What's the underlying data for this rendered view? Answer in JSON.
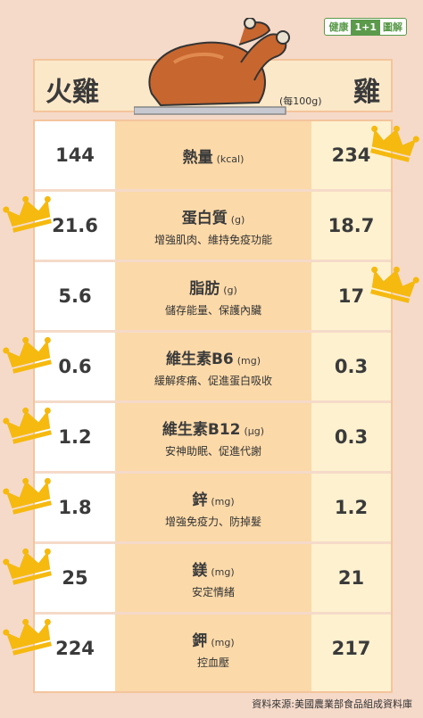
{
  "brand": {
    "left": "健康",
    "plus": "1+1",
    "right": "圖解"
  },
  "header": {
    "left_name": "火雞",
    "right_name": "雞",
    "unit": "(每100g)"
  },
  "rows": [
    {
      "name": "熱量",
      "unit": "(kcal)",
      "desc": "",
      "left": "144",
      "right": "234",
      "winner": "right"
    },
    {
      "name": "蛋白質",
      "unit": "(g)",
      "desc": "增強肌肉、維持免疫功能",
      "left": "21.6",
      "right": "18.7",
      "winner": "left"
    },
    {
      "name": "脂肪",
      "unit": "(g)",
      "desc": "儲存能量、保護內臟",
      "left": "5.6",
      "right": "17",
      "winner": "right"
    },
    {
      "name": "維生素B6",
      "unit": "(mg)",
      "desc": "緩解疼痛、促進蛋白吸收",
      "left": "0.6",
      "right": "0.3",
      "winner": "left"
    },
    {
      "name": "維生素B12",
      "unit": "(μg)",
      "desc": "安神助眠、促進代謝",
      "left": "1.2",
      "right": "0.3",
      "winner": "left"
    },
    {
      "name": "鋅",
      "unit": "(mg)",
      "desc": "增強免疫力、防掉髮",
      "left": "1.8",
      "right": "1.2",
      "winner": "left"
    },
    {
      "name": "鎂",
      "unit": "(mg)",
      "desc": "安定情緒",
      "left": "25",
      "right": "21",
      "winner": "left"
    },
    {
      "name": "鉀",
      "unit": "(mg)",
      "desc": "控血壓",
      "left": "224",
      "right": "217",
      "winner": "left"
    }
  ],
  "source": "資料來源:美國農業部食品組成資料庫",
  "colors": {
    "background": "#f5d9c9",
    "middle_column": "#fbd9a8",
    "crown": "#f5b90f",
    "brand_green": "#5a9a4a"
  }
}
